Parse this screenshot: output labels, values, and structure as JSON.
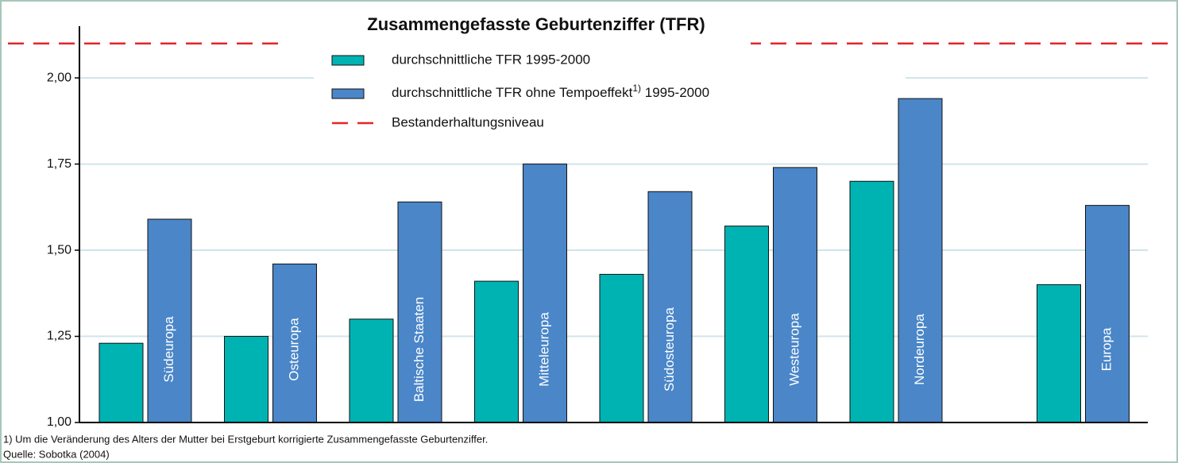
{
  "chart_data": {
    "type": "bar",
    "title": "Zusammengefasste Geburtenziffer (TFR)",
    "categories": [
      "Südeuropa",
      "Osteuropa",
      "Baltische Staaten",
      "Mitteleuropa",
      "Südosteuropa",
      "Westeuropa",
      "Nordeuropa",
      "Europa"
    ],
    "series": [
      {
        "name": "durchschnittliche TFR 1995-2000",
        "color": "#00b3b3",
        "values": [
          1.23,
          1.25,
          1.3,
          1.41,
          1.43,
          1.57,
          1.7,
          1.4
        ]
      },
      {
        "name": "durchschnittliche TFR ohne Tempoeffekt 1995-2000",
        "note_ref": "1)",
        "color": "#4a86c8",
        "values": [
          1.59,
          1.46,
          1.64,
          1.75,
          1.67,
          1.74,
          1.94,
          1.63
        ]
      }
    ],
    "reference_line": {
      "name": "Bestanderhaltungsniveau",
      "value": 2.1,
      "color": "#e3262b"
    },
    "ylim": [
      1,
      2.15
    ],
    "yticks": [
      {
        "value": 1,
        "label": "1,00"
      },
      {
        "value": 1.25,
        "label": "1,25"
      },
      {
        "value": 1.5,
        "label": "1,50"
      },
      {
        "value": 1.75,
        "label": "1,75"
      },
      {
        "value": 2,
        "label": "2,00"
      }
    ],
    "grid": true,
    "footnote": "1) Um die Veränderung des Alters der Mutter bei Erstgeburt korrigierte Zusammengefasste Geburtenziffer.",
    "source": "Quelle: Sobotka (2004)"
  }
}
